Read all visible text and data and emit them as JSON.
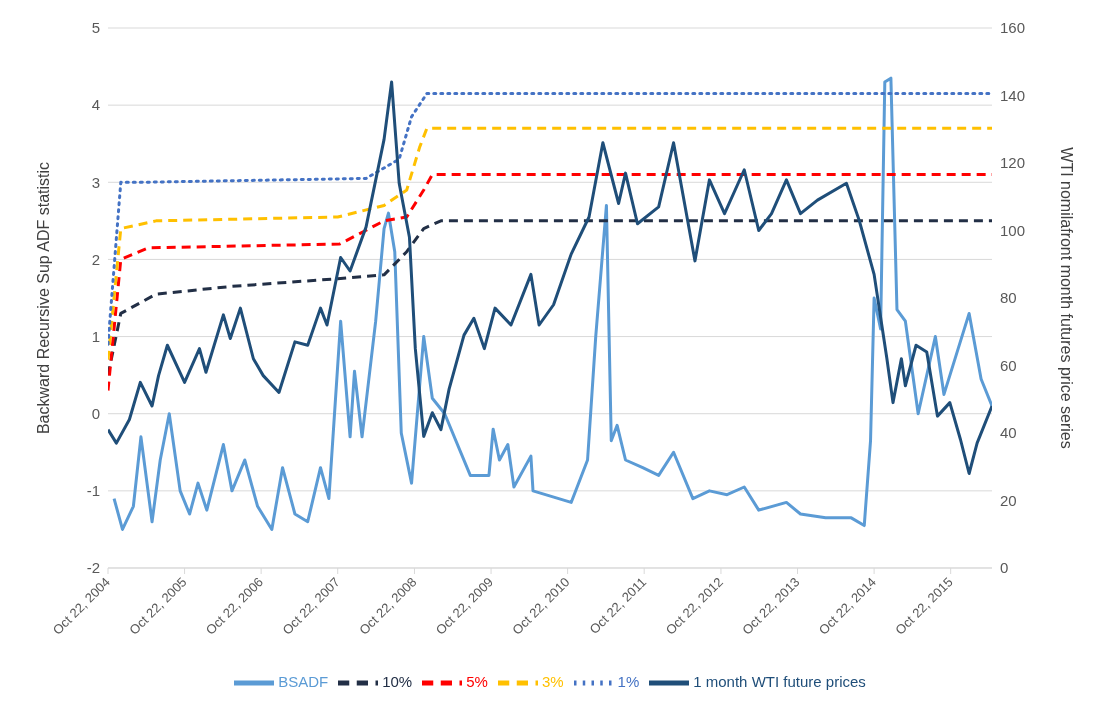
{
  "chart_data": {
    "type": "line",
    "ylabel": "Backward Recursive Sup ADF statistic",
    "y2label": "WTI nomilafront month futures price series",
    "xlim": [
      "2004-10-22",
      "2016-05-06"
    ],
    "xticks": [
      {
        "value": "2004-10-22",
        "label": "Oct 22, 2004"
      },
      {
        "value": "2005-10-22",
        "label": "Oct 22, 2005"
      },
      {
        "value": "2006-10-22",
        "label": "Oct 22, 2006"
      },
      {
        "value": "2007-10-22",
        "label": "Oct 22, 2007"
      },
      {
        "value": "2008-10-22",
        "label": "Oct 22, 2008"
      },
      {
        "value": "2009-10-22",
        "label": "Oct 22, 2009"
      },
      {
        "value": "2010-10-22",
        "label": "Oct 22, 2010"
      },
      {
        "value": "2011-10-22",
        "label": "Oct 22, 2011"
      },
      {
        "value": "2012-10-22",
        "label": "Oct 22, 2012"
      },
      {
        "value": "2013-10-22",
        "label": "Oct 22, 2013"
      },
      {
        "value": "2014-10-22",
        "label": "Oct 22, 2014"
      },
      {
        "value": "2015-10-22",
        "label": "Oct 22, 2015"
      }
    ],
    "ylim": [
      -2,
      5
    ],
    "yticks": [
      -2,
      -1,
      0,
      1,
      2,
      3,
      4,
      5
    ],
    "y2lim": [
      0,
      160
    ],
    "y2ticks": [
      0,
      20,
      40,
      60,
      80,
      100,
      120,
      140,
      160
    ],
    "grid": "y",
    "legend": "bottom",
    "marker": "none",
    "series": [
      {
        "name": "BSADF",
        "color": "#5b9bd5",
        "line_style": "solid",
        "x": [
          "2004-11-20",
          "2004-12-30",
          "2005-02-20",
          "2005-03-28",
          "2005-05-20",
          "2005-06-28",
          "2005-08-10",
          "2005-10-01",
          "2005-11-15",
          "2005-12-25",
          "2006-02-05",
          "2006-04-25",
          "2006-06-05",
          "2006-08-05",
          "2006-10-05",
          "2006-12-12",
          "2007-02-01",
          "2007-04-01",
          "2007-06-01",
          "2007-08-01",
          "2007-09-10",
          "2007-11-05",
          "2007-12-20",
          "2008-01-10",
          "2008-02-15",
          "2008-04-20",
          "2008-05-30",
          "2008-06-20",
          "2008-07-20",
          "2008-08-20",
          "2008-10-08",
          "2008-12-05",
          "2009-01-15",
          "2009-03-15",
          "2009-07-15",
          "2009-10-12",
          "2009-11-01",
          "2009-12-01",
          "2010-01-10",
          "2010-02-08",
          "2010-04-30",
          "2010-05-10",
          "2010-11-08",
          "2011-01-25",
          "2011-03-05",
          "2011-04-25",
          "2011-05-18",
          "2011-06-15",
          "2011-07-25",
          "2011-10-15",
          "2011-12-30",
          "2012-03-10",
          "2012-06-10",
          "2012-08-28",
          "2012-11-20",
          "2013-02-10",
          "2013-04-20",
          "2013-08-30",
          "2013-11-05",
          "2014-03-05",
          "2014-07-05",
          "2014-09-05",
          "2014-10-05",
          "2014-10-22",
          "2014-11-22",
          "2014-12-12",
          "2015-01-10",
          "2015-02-08",
          "2015-03-20",
          "2015-05-20",
          "2015-08-10",
          "2015-09-20",
          "2016-01-18",
          "2016-03-15",
          "2016-05-06"
        ],
        "values": [
          -1.1,
          -1.5,
          -1.2,
          -0.3,
          -1.4,
          -0.6,
          0,
          -1.0,
          -1.3,
          -0.9,
          -1.25,
          -0.4,
          -1.0,
          -0.6,
          -1.2,
          -1.5,
          -0.7,
          -1.3,
          -1.4,
          -0.7,
          -1.1,
          1.2,
          -0.3,
          0.55,
          -0.3,
          1.2,
          2.4,
          2.6,
          2.1,
          -0.25,
          -0.9,
          1.0,
          0.2,
          0,
          -0.8,
          -0.8,
          -0.2,
          -0.6,
          -0.4,
          -0.95,
          -0.55,
          -1.0,
          -1.15,
          -0.6,
          1.0,
          2.7,
          -0.35,
          -0.15,
          -0.6,
          -0.7,
          -0.8,
          -0.5,
          -1.1,
          -1.0,
          -1.05,
          -0.95,
          -1.25,
          -1.15,
          -1.3,
          -1.35,
          -1.35,
          -1.45,
          -0.35,
          1.5,
          1.1,
          4.3,
          4.35,
          1.35,
          1.2,
          0,
          1.0,
          0.25,
          1.3,
          0.45,
          0.1
        ]
      },
      {
        "name": "10%",
        "color": "#222f46",
        "line_style": "dashed",
        "x": [
          "2004-10-22",
          "2004-12-22",
          "2005-06-08",
          "2006-06-01",
          "2007-10-22",
          "2008-05-30",
          "2008-09-15",
          "2008-12-05",
          "2009-02-25",
          "2016-05-06"
        ],
        "values": [
          0.5,
          1.3,
          1.55,
          1.65,
          1.75,
          1.8,
          2.1,
          2.4,
          2.5,
          2.5
        ]
      },
      {
        "name": "5%",
        "color": "#ff0000",
        "line_style": "dashed",
        "x": [
          "2004-10-22",
          "2004-12-22",
          "2005-05-01",
          "2007-11-01",
          "2008-05-30",
          "2008-09-15",
          "2008-12-05",
          "2009-01-15",
          "2016-05-06"
        ],
        "values": [
          0.3,
          2.0,
          2.15,
          2.2,
          2.5,
          2.55,
          2.9,
          3.1,
          3.1
        ]
      },
      {
        "name": "3%",
        "color": "#ffc000",
        "line_style": "dashed",
        "x": [
          "2004-10-22",
          "2004-12-22",
          "2005-06-08",
          "2007-10-22",
          "2008-05-30",
          "2008-09-15",
          "2008-11-15",
          "2008-12-20",
          "2016-05-06"
        ],
        "values": [
          0.7,
          2.4,
          2.5,
          2.55,
          2.7,
          2.9,
          3.45,
          3.7,
          3.7
        ]
      },
      {
        "name": "1%",
        "color": "#4472c4",
        "line_style": "dotted",
        "x": [
          "2004-10-22",
          "2004-12-22",
          "2005-04-01",
          "2008-03-05",
          "2008-08-10",
          "2008-10-08",
          "2008-12-20",
          "2016-05-06"
        ],
        "values": [
          0.9,
          3.0,
          3.0,
          3.05,
          3.3,
          3.85,
          4.15,
          4.15
        ]
      },
      {
        "name": "1 month WTI future prices",
        "color": "#1f4e79",
        "line_style": "solid",
        "axis": "y2",
        "x": [
          "2004-10-22",
          "2004-12-01",
          "2005-02-01",
          "2005-03-25",
          "2005-05-20",
          "2005-06-20",
          "2005-08-01",
          "2005-10-22",
          "2006-01-01",
          "2006-02-01",
          "2006-04-25",
          "2006-05-28",
          "2006-07-15",
          "2006-09-15",
          "2006-11-01",
          "2007-01-15",
          "2007-04-01",
          "2007-06-01",
          "2007-08-01",
          "2007-09-01",
          "2007-11-05",
          "2007-12-20",
          "2008-03-05",
          "2008-05-30",
          "2008-07-05",
          "2008-08-10",
          "2008-09-28",
          "2008-10-26",
          "2008-12-05",
          "2009-01-15",
          "2009-02-25",
          "2009-04-05",
          "2009-06-15",
          "2009-08-01",
          "2009-09-20",
          "2009-11-10",
          "2010-01-25",
          "2010-04-30",
          "2010-06-08",
          "2010-08-16",
          "2010-11-08",
          "2011-02-01",
          "2011-04-08",
          "2011-06-22",
          "2011-07-25",
          "2011-09-20",
          "2011-12-30",
          "2012-03-10",
          "2012-06-20",
          "2012-08-28",
          "2012-11-08",
          "2013-02-10",
          "2013-04-20",
          "2013-06-20",
          "2013-08-30",
          "2013-11-05",
          "2014-01-25",
          "2014-06-12",
          "2014-08-12",
          "2014-10-22",
          "2014-12-22",
          "2015-01-20",
          "2015-03-01",
          "2015-03-20",
          "2015-05-10",
          "2015-06-30",
          "2015-08-20",
          "2015-10-18",
          "2015-12-08",
          "2016-01-18",
          "2016-02-25",
          "2016-05-06"
        ],
        "values": [
          41,
          37,
          44,
          55,
          48,
          57,
          66,
          55,
          65,
          58,
          75,
          68,
          77,
          62,
          57,
          52,
          67,
          66,
          77,
          72,
          92,
          88,
          101,
          127,
          144,
          114,
          98,
          65,
          39,
          46,
          41,
          53,
          69,
          74,
          65,
          77,
          72,
          87,
          72,
          78,
          93,
          104,
          126,
          108,
          117,
          102,
          107,
          126,
          91,
          115,
          105,
          118,
          100,
          105,
          115,
          105,
          109,
          114,
          103,
          87,
          62,
          49,
          62,
          54,
          66,
          64,
          45,
          49,
          38,
          28,
          37,
          48
        ]
      }
    ]
  }
}
